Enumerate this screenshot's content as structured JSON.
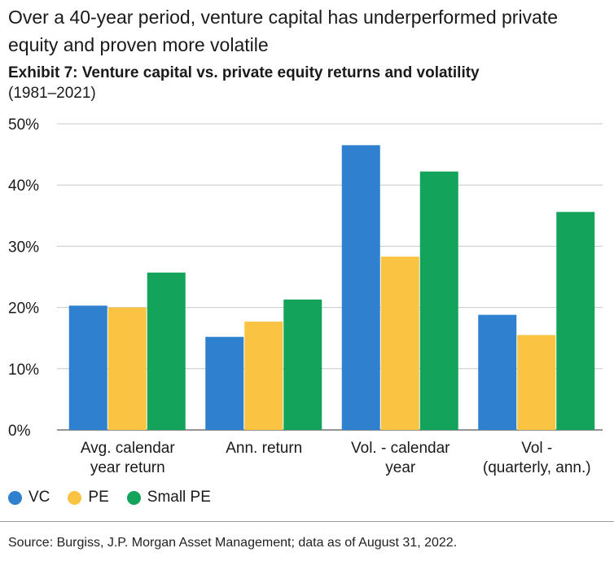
{
  "header": {
    "title": "Over a 40-year period, venture capital has underperformed private equity and proven more volatile",
    "exhibit_label": "Exhibit 7:",
    "exhibit_text": "Venture capital vs. private equity returns and volatility",
    "exhibit_years": "(1981–2021)"
  },
  "footer": {
    "source": "Source: Burgiss, J.P. Morgan Asset Management; data as of August 31, 2022."
  },
  "colors": {
    "VC": "#2f80cf",
    "PE": "#fbc342",
    "Small PE": "#14a35b",
    "gridline": "#c8c8c8",
    "axis": "#555555"
  },
  "chart_data": {
    "type": "bar",
    "title": "Venture capital vs. private equity returns and volatility (1981–2021)",
    "categories": [
      [
        "Avg. calendar",
        "year return"
      ],
      [
        "Ann. return"
      ],
      [
        "Vol. - calendar",
        "year"
      ],
      [
        "Vol -",
        "(quarterly, ann.)"
      ]
    ],
    "series": [
      {
        "name": "VC",
        "values": [
          20.3,
          15.2,
          46.5,
          18.8
        ]
      },
      {
        "name": "PE",
        "values": [
          20.0,
          17.7,
          28.3,
          15.5
        ]
      },
      {
        "name": "Small PE",
        "values": [
          25.7,
          21.3,
          42.2,
          35.6
        ]
      }
    ],
    "ylim": [
      0,
      50
    ],
    "yticks": [
      0,
      10,
      20,
      30,
      40,
      50
    ],
    "ytick_labels": [
      "0%",
      "10%",
      "20%",
      "30%",
      "40%",
      "50%"
    ],
    "xlabel": "",
    "ylabel": "",
    "grid": true,
    "legend": [
      "VC",
      "PE",
      "Small PE"
    ],
    "legend_position": "bottom-left"
  }
}
